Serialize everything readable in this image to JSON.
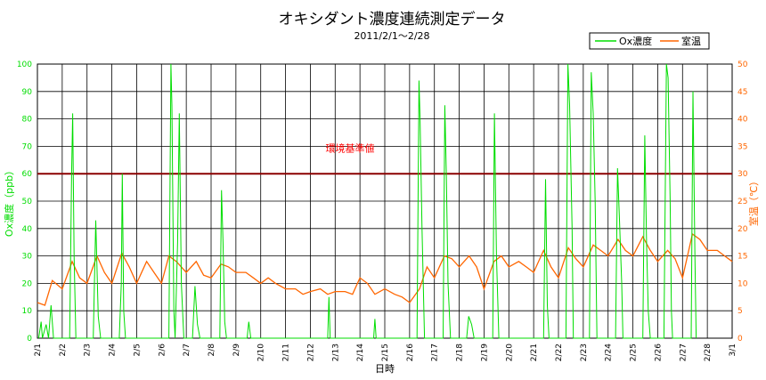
{
  "chart_data": {
    "type": "line",
    "title": "オキシダント濃度連続測定データ",
    "subtitle": "2011/2/1～2/28",
    "xlabel": "日時",
    "ylabel_left": "Ox濃度（ppb）",
    "ylabel_right": "室温（℃）",
    "ylim_left": [
      0,
      100
    ],
    "ylim_right": [
      0,
      50
    ],
    "yticks_left": [
      "0",
      "10",
      "20",
      "30",
      "40",
      "50",
      "60",
      "70",
      "80",
      "90",
      "100"
    ],
    "yticks_right": [
      "0",
      "5",
      "10",
      "15",
      "20",
      "25",
      "30",
      "35",
      "40",
      "45",
      "50"
    ],
    "xticks": [
      "2/1",
      "2/2",
      "2/3",
      "2/4",
      "2/5",
      "2/6",
      "2/7",
      "2/8",
      "2/9",
      "2/10",
      "2/11",
      "2/12",
      "2/13",
      "2/14",
      "2/15",
      "2/16",
      "2/17",
      "2/18",
      "2/19",
      "2/20",
      "2/21",
      "2/22",
      "2/23",
      "2/24",
      "2/25",
      "2/26",
      "2/27",
      "2/28",
      "3/1"
    ],
    "grid": true,
    "legend_position": "top-right",
    "reference_line": {
      "label": "環境基準値",
      "value": 60,
      "color": "#8b0000"
    },
    "series": [
      {
        "name": "Ox濃度",
        "axis": "left",
        "color": "#00dd00",
        "points": [
          [
            0.05,
            0
          ],
          [
            0.15,
            6
          ],
          [
            0.2,
            0
          ],
          [
            0.35,
            5
          ],
          [
            0.45,
            0
          ],
          [
            0.55,
            12
          ],
          [
            0.65,
            0
          ],
          [
            1.3,
            0
          ],
          [
            1.38,
            60
          ],
          [
            1.42,
            82
          ],
          [
            1.48,
            30
          ],
          [
            1.55,
            0
          ],
          [
            2.25,
            0
          ],
          [
            2.35,
            43
          ],
          [
            2.45,
            8
          ],
          [
            2.55,
            0
          ],
          [
            3.3,
            0
          ],
          [
            3.38,
            20
          ],
          [
            3.42,
            60
          ],
          [
            3.48,
            10
          ],
          [
            3.55,
            0
          ],
          [
            5.3,
            0
          ],
          [
            5.38,
            100
          ],
          [
            5.42,
            85
          ],
          [
            5.5,
            10
          ],
          [
            5.55,
            0
          ],
          [
            5.65,
            35
          ],
          [
            5.72,
            82
          ],
          [
            5.8,
            20
          ],
          [
            5.9,
            0
          ],
          [
            6.25,
            0
          ],
          [
            6.35,
            19
          ],
          [
            6.45,
            5
          ],
          [
            6.55,
            0
          ],
          [
            7.35,
            0
          ],
          [
            7.42,
            54
          ],
          [
            7.48,
            35
          ],
          [
            7.55,
            6
          ],
          [
            7.62,
            0
          ],
          [
            8.45,
            0
          ],
          [
            8.52,
            6
          ],
          [
            8.6,
            0
          ],
          [
            11.7,
            0
          ],
          [
            11.75,
            15
          ],
          [
            11.8,
            0
          ],
          [
            13.55,
            0
          ],
          [
            13.6,
            7
          ],
          [
            13.65,
            0
          ],
          [
            15.3,
            0
          ],
          [
            15.38,
            94
          ],
          [
            15.42,
            80
          ],
          [
            15.5,
            40
          ],
          [
            15.6,
            0
          ],
          [
            16.35,
            0
          ],
          [
            16.42,
            85
          ],
          [
            16.48,
            60
          ],
          [
            16.55,
            20
          ],
          [
            16.65,
            0
          ],
          [
            17.3,
            0
          ],
          [
            17.38,
            8
          ],
          [
            17.5,
            5
          ],
          [
            17.6,
            0
          ],
          [
            18.35,
            0
          ],
          [
            18.42,
            82
          ],
          [
            18.5,
            30
          ],
          [
            18.6,
            0
          ],
          [
            20.4,
            0
          ],
          [
            20.48,
            58
          ],
          [
            20.55,
            12
          ],
          [
            20.62,
            0
          ],
          [
            21.3,
            0
          ],
          [
            21.38,
            100
          ],
          [
            21.45,
            85
          ],
          [
            21.55,
            40
          ],
          [
            21.6,
            0
          ],
          [
            22.25,
            0
          ],
          [
            22.32,
            97
          ],
          [
            22.4,
            82
          ],
          [
            22.48,
            50
          ],
          [
            22.55,
            0
          ],
          [
            23.3,
            0
          ],
          [
            23.38,
            62
          ],
          [
            23.45,
            45
          ],
          [
            23.55,
            20
          ],
          [
            23.6,
            0
          ],
          [
            24.4,
            0
          ],
          [
            24.48,
            74
          ],
          [
            24.55,
            35
          ],
          [
            24.62,
            10
          ],
          [
            24.7,
            0
          ],
          [
            25.25,
            0
          ],
          [
            25.35,
            100
          ],
          [
            25.42,
            95
          ],
          [
            25.5,
            50
          ],
          [
            25.55,
            10
          ],
          [
            25.6,
            0
          ],
          [
            26.35,
            0
          ],
          [
            26.42,
            90
          ],
          [
            26.5,
            30
          ],
          [
            26.55,
            0
          ]
        ]
      },
      {
        "name": "室温",
        "axis": "right",
        "color": "#ff6600",
        "points": [
          [
            0,
            6.5
          ],
          [
            0.3,
            6
          ],
          [
            0.6,
            10.5
          ],
          [
            1,
            9
          ],
          [
            1.4,
            14
          ],
          [
            1.7,
            11
          ],
          [
            2,
            10
          ],
          [
            2.4,
            15
          ],
          [
            2.7,
            12
          ],
          [
            3,
            10
          ],
          [
            3.4,
            15.5
          ],
          [
            3.7,
            13
          ],
          [
            4,
            10
          ],
          [
            4.4,
            14
          ],
          [
            4.7,
            12
          ],
          [
            5,
            10
          ],
          [
            5.3,
            15
          ],
          [
            5.6,
            14
          ],
          [
            6,
            12
          ],
          [
            6.4,
            14
          ],
          [
            6.7,
            11.5
          ],
          [
            7,
            11
          ],
          [
            7.4,
            13.5
          ],
          [
            7.7,
            13
          ],
          [
            8,
            12
          ],
          [
            8.4,
            12
          ],
          [
            8.7,
            11
          ],
          [
            9,
            10
          ],
          [
            9.3,
            11
          ],
          [
            9.6,
            10
          ],
          [
            10,
            9
          ],
          [
            10.4,
            9
          ],
          [
            10.7,
            8
          ],
          [
            11,
            8.5
          ],
          [
            11.4,
            9
          ],
          [
            11.7,
            8
          ],
          [
            12,
            8.5
          ],
          [
            12.4,
            8.5
          ],
          [
            12.7,
            8
          ],
          [
            13,
            11
          ],
          [
            13.3,
            10
          ],
          [
            13.6,
            8
          ],
          [
            14,
            9
          ],
          [
            14.4,
            8
          ],
          [
            14.7,
            7.5
          ],
          [
            15,
            6.5
          ],
          [
            15.4,
            9
          ],
          [
            15.7,
            13
          ],
          [
            16,
            11
          ],
          [
            16.4,
            15
          ],
          [
            16.7,
            14.5
          ],
          [
            17,
            13
          ],
          [
            17.4,
            15
          ],
          [
            17.7,
            13
          ],
          [
            18,
            9
          ],
          [
            18.4,
            14
          ],
          [
            18.7,
            15
          ],
          [
            19,
            13
          ],
          [
            19.4,
            14
          ],
          [
            19.7,
            13
          ],
          [
            20,
            12
          ],
          [
            20.4,
            16
          ],
          [
            20.7,
            13
          ],
          [
            21,
            11
          ],
          [
            21.4,
            16.5
          ],
          [
            21.7,
            14.5
          ],
          [
            22,
            13
          ],
          [
            22.4,
            17
          ],
          [
            22.7,
            16
          ],
          [
            23,
            15
          ],
          [
            23.4,
            18
          ],
          [
            23.7,
            16
          ],
          [
            24,
            15
          ],
          [
            24.4,
            18.5
          ],
          [
            24.7,
            16
          ],
          [
            25,
            14
          ],
          [
            25.4,
            16
          ],
          [
            25.7,
            14.5
          ],
          [
            26,
            11
          ],
          [
            26.4,
            19
          ],
          [
            26.7,
            18
          ],
          [
            27,
            16
          ],
          [
            27.4,
            16
          ],
          [
            27.7,
            15
          ],
          [
            28,
            14
          ]
        ]
      }
    ]
  }
}
